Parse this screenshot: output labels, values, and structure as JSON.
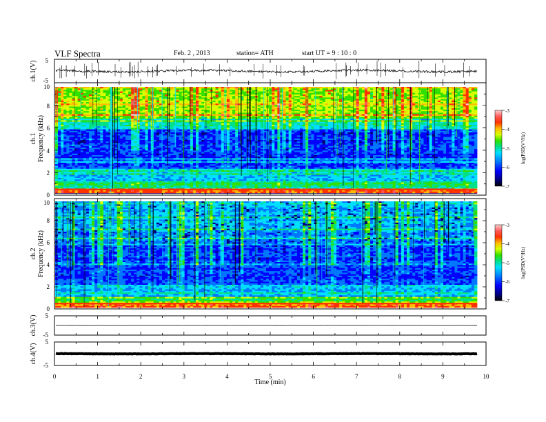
{
  "header": {
    "title": "VLF  Spectra",
    "date": "Feb. 2  , 2013",
    "station": "station= ATH",
    "start": "start  UT  =   9  : 10 : 0"
  },
  "colors": {
    "colormap": [
      "#000000",
      "#00007a",
      "#0000ff",
      "#0077ff",
      "#00dfff",
      "#00e08a",
      "#33e000",
      "#d8ff00",
      "#ffbb00",
      "#ff3300",
      "#ff5a5a",
      "#ffd0d0"
    ]
  },
  "chart_data": [
    {
      "type": "line",
      "panel": "ch1-waveform",
      "ylabel": "ch.1(V)",
      "xlim": [
        0,
        9.8
      ],
      "ylim": [
        -5,
        5
      ],
      "yticks": [
        "5",
        "-5"
      ],
      "baseline": 0
    },
    {
      "type": "heatmap",
      "panel": "ch1-spectrogram",
      "ylabel_line1": "ch.1",
      "ylabel_line2": "Frequency  (kHz)",
      "ylim": [
        0,
        10
      ],
      "yticks": [
        "0",
        "2",
        "4",
        "6",
        "8",
        "10"
      ],
      "colorbar": {
        "label": "log(PSD(V²/Hz)",
        "range": [
          -7,
          -3
        ],
        "ticks": [
          "-3",
          "-4",
          "-5",
          "-6",
          "-7"
        ]
      }
    },
    {
      "type": "heatmap",
      "panel": "ch2-spectrogram",
      "ylabel_line1": "ch.2",
      "ylabel_line2": "Frequency  (kHz)",
      "ylim": [
        0,
        10
      ],
      "yticks": [
        "0",
        "2",
        "4",
        "6",
        "8",
        "10"
      ],
      "colorbar": {
        "label": "log(PSD(V²/Hz)",
        "range": [
          -7,
          -3
        ],
        "ticks": [
          "-3",
          "-4",
          "-5",
          "-6",
          "-7"
        ]
      }
    },
    {
      "type": "line",
      "panel": "ch3-waveform",
      "ylabel": "ch.3(V)",
      "xlim": [
        0,
        9.8
      ],
      "ylim": [
        -5,
        5
      ],
      "yticks": [
        "5",
        "-5"
      ],
      "baseline": 0
    },
    {
      "type": "line",
      "panel": "ch4-waveform",
      "ylabel": "ch.4(V)",
      "xlim": [
        0,
        9.8
      ],
      "ylim": [
        -5,
        5
      ],
      "yticks": [
        "5",
        "-5"
      ],
      "baseline": 0
    }
  ],
  "xaxis": {
    "label": "Time  (min)",
    "range": [
      0,
      10
    ],
    "ticks": [
      "0",
      "1",
      "2",
      "3",
      "4",
      "5",
      "6",
      "7",
      "8",
      "9",
      "10"
    ]
  }
}
